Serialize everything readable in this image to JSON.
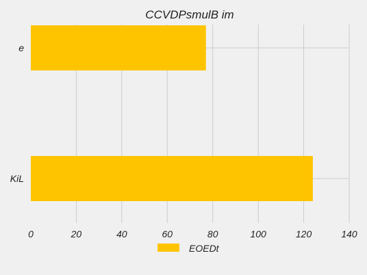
{
  "chart_data": {
    "type": "bar",
    "orientation": "horizontal",
    "title": "CCVDPsmulB im",
    "categories": [
      "e",
      "KiL"
    ],
    "series": [
      {
        "name": "EOEDt",
        "values": [
          77,
          124
        ],
        "color": "#ffc400"
      }
    ],
    "xlim": [
      0,
      140
    ],
    "xticks": [
      0,
      20,
      40,
      60,
      80,
      100,
      120,
      140
    ],
    "grid": true,
    "legend_position": "bottom-center",
    "background_color": "#f0f0f0"
  }
}
